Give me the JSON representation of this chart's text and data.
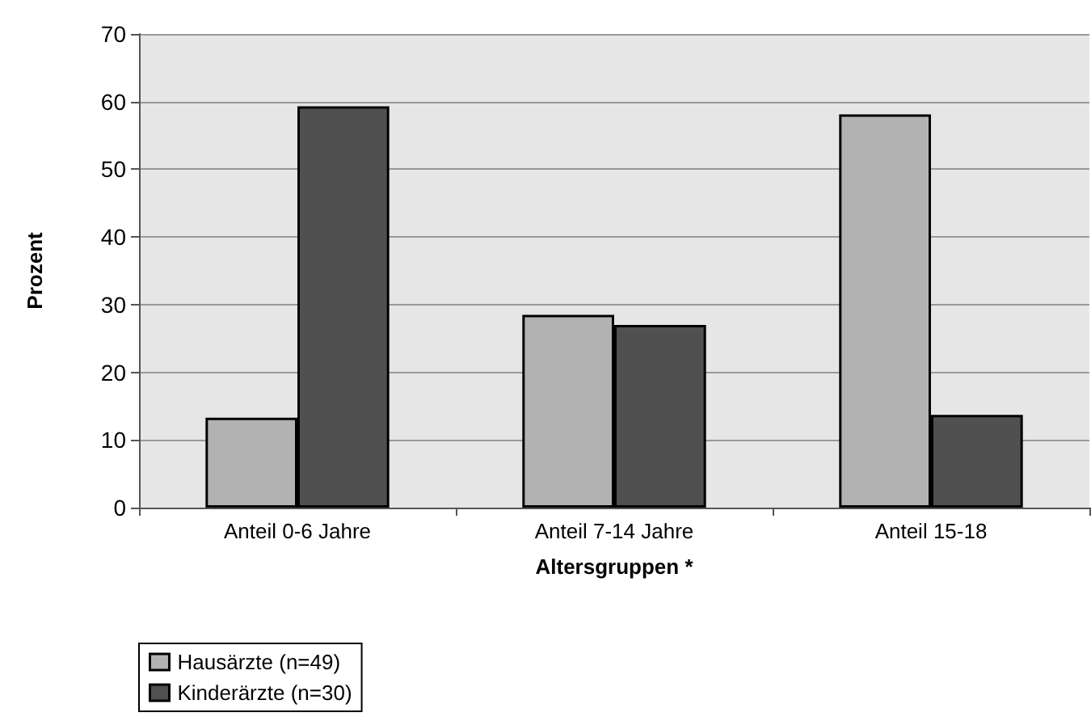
{
  "chart_data": {
    "type": "bar",
    "xlabel": "Altersgruppen *",
    "ylabel": "Prozent",
    "categories": [
      "Anteil 0-6 Jahre",
      "Anteil 7-14 Jahre",
      "Anteil 15-18"
    ],
    "series": [
      {
        "name": "Hausärzte (n=49)",
        "color": "#b2b2b2",
        "values": [
          13.3,
          28.5,
          58.1
        ]
      },
      {
        "name": "Kinderärzte (n=30)",
        "color": "#505050",
        "values": [
          59.3,
          27.0,
          13.7
        ]
      }
    ],
    "ylim": [
      0,
      70
    ],
    "yticks": [
      0,
      10,
      20,
      30,
      40,
      50,
      60,
      70
    ],
    "grid": "y",
    "legend": "bottom left"
  }
}
